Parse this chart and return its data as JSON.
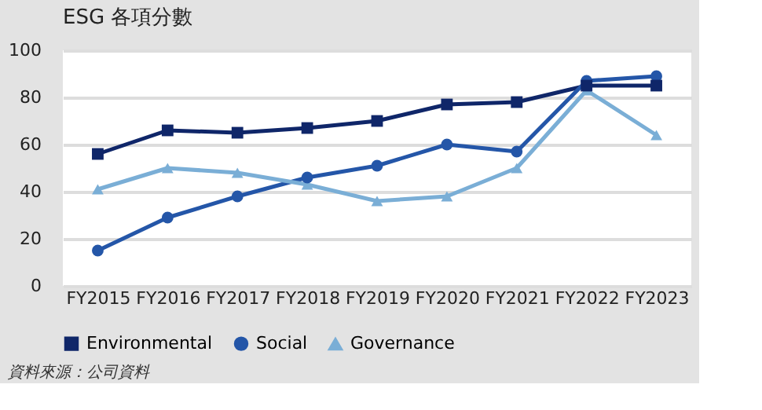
{
  "chart_data": {
    "type": "line",
    "title": "ESG 各項分數",
    "categories": [
      "FY2015",
      "FY2016",
      "FY2017",
      "FY2018",
      "FY2019",
      "FY2020",
      "FY2021",
      "FY2022",
      "FY2023"
    ],
    "series": [
      {
        "name": "Environmental",
        "color": "#0f2669",
        "marker": "square",
        "values": [
          56,
          66,
          65,
          67,
          70,
          77,
          78,
          85,
          85
        ]
      },
      {
        "name": "Social",
        "color": "#2456a8",
        "marker": "circle",
        "values": [
          15,
          29,
          38,
          46,
          51,
          60,
          57,
          87,
          89
        ]
      },
      {
        "name": "Governance",
        "color": "#7aaed6",
        "marker": "triangle",
        "values": [
          41,
          50,
          48,
          43,
          36,
          38,
          50,
          83,
          64
        ]
      }
    ],
    "ylim": [
      0,
      100
    ],
    "yticks": [
      0,
      20,
      40,
      60,
      80,
      100
    ],
    "grid": "y",
    "legend": "bottom",
    "annotations": [
      "資料來源：公司資料"
    ]
  }
}
